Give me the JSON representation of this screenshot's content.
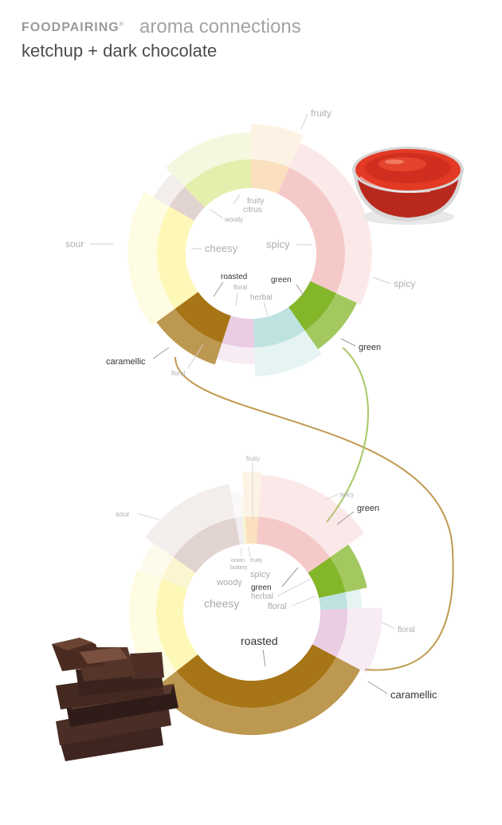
{
  "header": {
    "brand": "FOODPAIRING",
    "brand_reg": "®",
    "subtitle": "aroma connections",
    "pair_title": "ketchup + dark chocolate"
  },
  "colors": {
    "fruity": "#f5c788",
    "citrus": "#cfe16a",
    "woody": "#c8aea7",
    "cheesy": "#fcf27c",
    "caramellic": "#a57218",
    "floral": "#d9a2cc",
    "herbal": "#89cbc6",
    "green": "#84b62a",
    "spicy": "#ee9d9d",
    "roasted": "#a77516",
    "sour": "#f7efa8",
    "connector_caramellic": "#bf9a4f",
    "connector_green": "#a7c864"
  },
  "ketchup": {
    "icon": "ketchup-bowl-icon",
    "segments": [
      {
        "name": "fruity",
        "start": 0,
        "end": 24,
        "outer_level": 0.85,
        "highlight": false
      },
      {
        "name": "spicy",
        "start": 24,
        "end": 115,
        "outer_level": 0.65,
        "highlight": false
      },
      {
        "name": "green",
        "start": 115,
        "end": 145,
        "outer_level": 0.55,
        "highlight": true
      },
      {
        "name": "herbal",
        "start": 145,
        "end": 178,
        "outer_level": 0.7,
        "highlight": false
      },
      {
        "name": "floral",
        "start": 178,
        "end": 198,
        "outer_level": 0.4,
        "highlight": false
      },
      {
        "name": "roasted",
        "start": 198,
        "end": 234,
        "outer_level": 0.55,
        "highlight": true
      },
      {
        "name": "cheesy",
        "start": 234,
        "end": 300,
        "outer_level": 0.7,
        "highlight": false
      },
      {
        "name": "woody",
        "start": 300,
        "end": 315,
        "outer_level": 0.45,
        "highlight": false
      },
      {
        "name": "citrus",
        "start": 315,
        "end": 360,
        "outer_level": 0.65,
        "highlight": false
      }
    ],
    "inner_labels": [
      {
        "text": "fruity",
        "size": 10,
        "dark": false
      },
      {
        "text": "citrus",
        "size": 10,
        "dark": false
      },
      {
        "text": "woody",
        "size": 8,
        "dark": false
      },
      {
        "text": "cheesy",
        "size": 13,
        "dark": false
      },
      {
        "text": "spicy",
        "size": 13,
        "dark": false
      },
      {
        "text": "roasted",
        "size": 10,
        "dark": true
      },
      {
        "text": "floral",
        "size": 8,
        "dark": false
      },
      {
        "text": "green",
        "size": 10,
        "dark": true
      },
      {
        "text": "herbal",
        "size": 10,
        "dark": false
      }
    ],
    "outer_labels": [
      {
        "text": "fruity",
        "dark": false
      },
      {
        "text": "sour",
        "dark": false
      },
      {
        "text": "spicy",
        "dark": false
      },
      {
        "text": "green",
        "dark": true
      },
      {
        "text": "caramellic",
        "dark": true
      },
      {
        "text": "floral",
        "dark": false
      }
    ]
  },
  "chocolate": {
    "icon": "chocolate-stack-icon",
    "segments": [
      {
        "name": "fruity",
        "start": -4,
        "end": 4,
        "outer_level": 0.9,
        "highlight": false
      },
      {
        "name": "spicy",
        "start": 4,
        "end": 55,
        "outer_level": 0.85,
        "highlight": false
      },
      {
        "name": "green",
        "start": 55,
        "end": 78,
        "outer_level": 0.45,
        "highlight": true
      },
      {
        "name": "herbal",
        "start": 78,
        "end": 88,
        "outer_level": 0.3,
        "highlight": false
      },
      {
        "name": "floral",
        "start": 88,
        "end": 118,
        "outer_level": 0.7,
        "highlight": false
      },
      {
        "name": "roasted",
        "start": 118,
        "end": 232,
        "outer_level": 0.55,
        "highlight": true
      },
      {
        "name": "cheesy",
        "start": 232,
        "end": 290,
        "outer_level": 0.55,
        "highlight": false
      },
      {
        "name": "sour",
        "start": 290,
        "end": 305,
        "outer_level": 0.5,
        "highlight": false
      },
      {
        "name": "woody",
        "start": 305,
        "end": 350,
        "outer_level": 0.7,
        "highlight": false
      },
      {
        "name": "onion",
        "start": 350,
        "end": 354,
        "outer_level": 0.5,
        "highlight": false
      },
      {
        "name": "buttery",
        "start": 354,
        "end": 356,
        "outer_level": 0.4,
        "highlight": false
      }
    ],
    "inner_labels": [
      {
        "text": "onion",
        "size": 7,
        "dark": false
      },
      {
        "text": "buttery",
        "size": 7,
        "dark": false
      },
      {
        "text": "fruity",
        "size": 7,
        "dark": false
      },
      {
        "text": "spicy",
        "size": 11,
        "dark": false
      },
      {
        "text": "woody",
        "size": 11,
        "dark": false
      },
      {
        "text": "green",
        "size": 10,
        "dark": true
      },
      {
        "text": "herbal",
        "size": 10,
        "dark": false
      },
      {
        "text": "cheesy",
        "size": 14,
        "dark": false
      },
      {
        "text": "floral",
        "size": 11,
        "dark": false
      },
      {
        "text": "roasted",
        "size": 14,
        "dark": true
      }
    ],
    "outer_labels": [
      {
        "text": "fruity",
        "dark": false
      },
      {
        "text": "spicy",
        "dark": false
      },
      {
        "text": "sour",
        "dark": false
      },
      {
        "text": "green",
        "dark": true
      },
      {
        "text": "floral",
        "dark": false
      },
      {
        "text": "caramellic",
        "dark": true
      }
    ]
  }
}
